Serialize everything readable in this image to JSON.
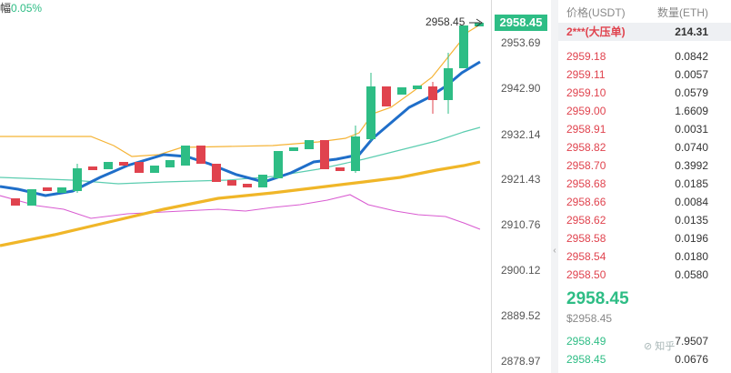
{
  "top_left": {
    "label": "幅",
    "change": "0.05%"
  },
  "price_axis": {
    "ticks": [
      "2953.69",
      "2942.90",
      "2932.14",
      "2921.43",
      "2910.76",
      "2900.12",
      "2889.52",
      "2878.97"
    ],
    "current_label": "2958.45",
    "current_price": "2958.45"
  },
  "orderbook": {
    "header_price": "价格(USDT)",
    "header_qty": "数量(ETH)",
    "highlight": {
      "price": "2***(大压单)",
      "qty": "214.31"
    },
    "asks": [
      {
        "price": "2959.18",
        "qty": "0.0842"
      },
      {
        "price": "2959.11",
        "qty": "0.0057"
      },
      {
        "price": "2959.10",
        "qty": "0.0579"
      },
      {
        "price": "2959.00",
        "qty": "1.6609"
      },
      {
        "price": "2958.91",
        "qty": "0.0031"
      },
      {
        "price": "2958.82",
        "qty": "0.0740"
      },
      {
        "price": "2958.70",
        "qty": "0.3992"
      },
      {
        "price": "2958.68",
        "qty": "0.0185"
      },
      {
        "price": "2958.66",
        "qty": "0.0084"
      },
      {
        "price": "2958.62",
        "qty": "0.0135"
      },
      {
        "price": "2958.58",
        "qty": "0.0196"
      },
      {
        "price": "2958.54",
        "qty": "0.0180"
      },
      {
        "price": "2958.50",
        "qty": "0.0580"
      }
    ],
    "mid_price": "2958.45",
    "mid_price_usd": "$2958.45",
    "bids": [
      {
        "price": "2958.49",
        "qty": "7.9507"
      },
      {
        "price": "2958.45",
        "qty": "0.0676"
      }
    ]
  },
  "watermark": "⊘ 知乎"
}
